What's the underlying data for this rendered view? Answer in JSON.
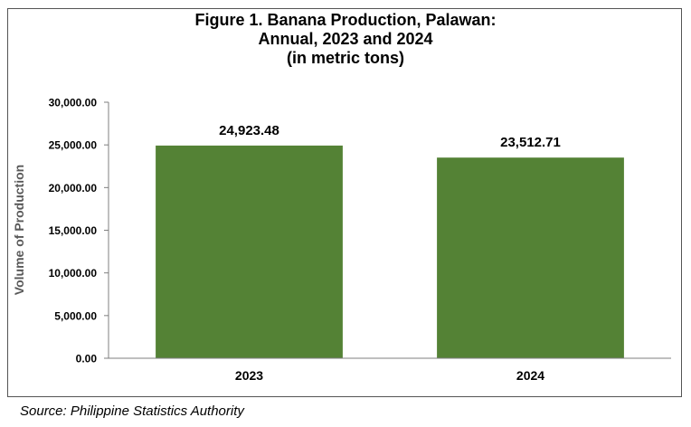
{
  "chart_data": {
    "type": "bar",
    "title_lines": [
      "Figure 1. Banana Production, Palawan:",
      "Annual, 2023 and 2024",
      "(in metric tons)"
    ],
    "categories": [
      "2023",
      "2024"
    ],
    "values": [
      24923.48,
      23512.71
    ],
    "value_labels": [
      "24,923.48",
      "23,512.71"
    ],
    "xlabel": "",
    "ylabel": "Volume of Production",
    "ylim": [
      0,
      30000
    ],
    "yticks": [
      0,
      5000,
      10000,
      15000,
      20000,
      25000,
      30000
    ],
    "ytick_labels": [
      "0.00",
      "5,000.00",
      "10,000.00",
      "15,000.00",
      "20,000.00",
      "25,000.00",
      "30,000.00"
    ],
    "grid": false,
    "legend": "none",
    "bar_color": "#548235"
  },
  "source": "Source: Philippine Statistics Authority"
}
